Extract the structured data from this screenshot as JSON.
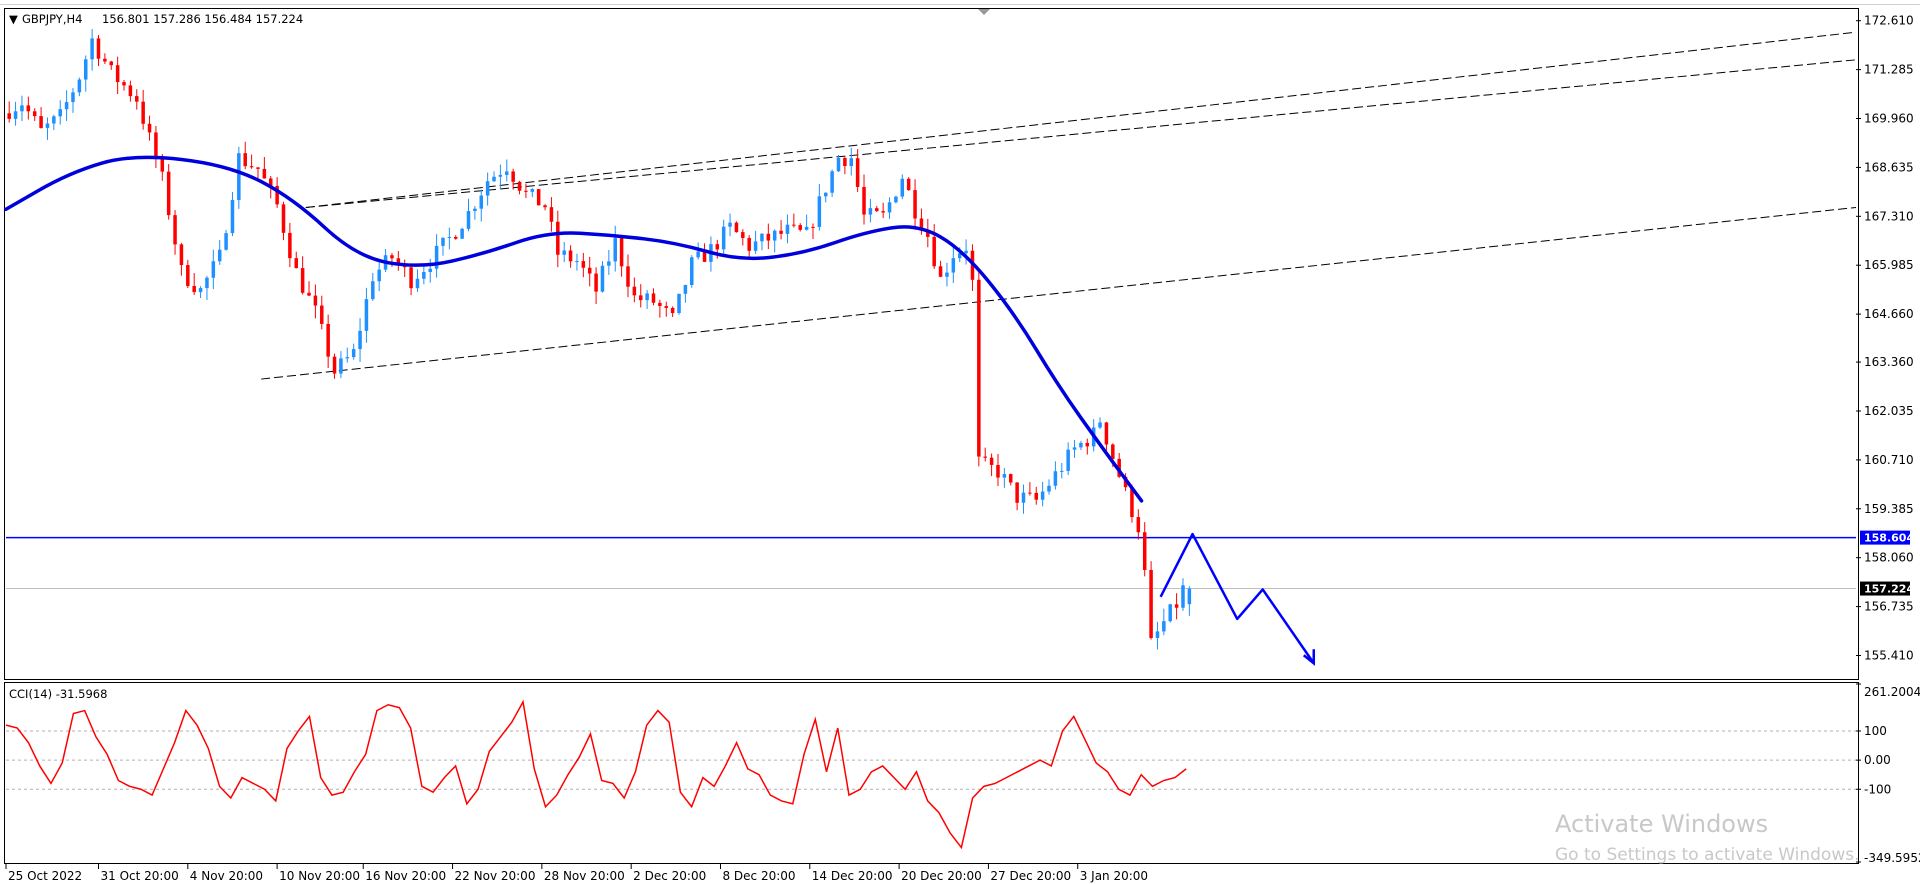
{
  "header": {
    "symbol_timeframe": "GBPJPY,H4",
    "ohlc": "156.801 157.286 156.484 157.224"
  },
  "indicator": {
    "label": "CCI(14) -31.5968",
    "levels": [
      100,
      0,
      -100
    ],
    "axis_labels": [
      "261.2004",
      "100",
      "0.00",
      "-100",
      "-349.5952"
    ],
    "color": "#ff0000"
  },
  "price_axis": {
    "labels": [
      "172.610",
      "171.285",
      "169.960",
      "168.635",
      "167.310",
      "165.985",
      "164.660",
      "163.360",
      "162.035",
      "160.710",
      "159.385",
      "158.060",
      "156.735",
      "155.410"
    ],
    "tags": [
      {
        "text": "158.604",
        "bg": "#0000ff"
      },
      {
        "text": "157.224",
        "bg": "#000000"
      }
    ]
  },
  "time_axis": {
    "labels": [
      "25 Oct 2022",
      "31 Oct 20:00",
      "4 Nov 20:00",
      "10 Nov 20:00",
      "16 Nov 20:00",
      "22 Nov 20:00",
      "28 Nov 20:00",
      "2 Dec 20:00",
      "8 Dec 20:00",
      "14 Dec 20:00",
      "20 Dec 20:00",
      "27 Dec 20:00",
      "3 Jan 20:00"
    ]
  },
  "watermark": {
    "title": "Activate Windows",
    "subtitle": "Go to Settings to activate Windows."
  },
  "colors": {
    "bull": "#1e90ff",
    "bear": "#ff0000",
    "ma": "#0000dd",
    "horizontal_line": "#0000ff",
    "current_price_line": "#c0c0c0",
    "projection": "#0000ff",
    "channel": "#000000"
  },
  "chart_data": {
    "type": "candlestick",
    "symbol": "GBPJPY",
    "timeframe": "H4",
    "ylim": [
      154.8,
      172.9
    ],
    "horizontal_line": 158.604,
    "current_price": 157.224,
    "x_range": [
      0,
      290
    ],
    "channel_upper": [
      [
        47,
        167.55
      ],
      [
        290,
        172.3
      ]
    ],
    "channel_lower": [
      [
        40,
        162.9
      ],
      [
        290,
        167.55
      ]
    ],
    "channel_mid": [
      [
        47,
        167.55
      ],
      [
        290,
        172.3
      ]
    ],
    "moving_average": [
      [
        0,
        167.5
      ],
      [
        10,
        168.5
      ],
      [
        20,
        169.0
      ],
      [
        35,
        168.7
      ],
      [
        45,
        167.8
      ],
      [
        55,
        166.2
      ],
      [
        65,
        165.9
      ],
      [
        75,
        166.3
      ],
      [
        85,
        166.9
      ],
      [
        95,
        166.8
      ],
      [
        105,
        166.6
      ],
      [
        115,
        166.1
      ],
      [
        125,
        166.3
      ],
      [
        135,
        166.9
      ],
      [
        143,
        167.1
      ],
      [
        150,
        166.4
      ],
      [
        158,
        164.7
      ],
      [
        165,
        162.7
      ],
      [
        172,
        161.0
      ],
      [
        178,
        159.6
      ]
    ],
    "projection_path": [
      [
        181,
        157.0
      ],
      [
        186,
        158.7
      ],
      [
        193,
        156.4
      ],
      [
        197,
        157.2
      ],
      [
        205,
        155.2
      ]
    ],
    "candles": [],
    "cci": {
      "name": "CCI(14)",
      "last": -31.5968,
      "ylim": [
        -349.5952,
        261.2004
      ],
      "values": [
        120,
        110,
        60,
        -20,
        -80,
        -10,
        160,
        170,
        80,
        20,
        -70,
        -90,
        -100,
        -120,
        -30,
        60,
        170,
        120,
        40,
        -90,
        -130,
        -60,
        -80,
        -100,
        -140,
        40,
        100,
        150,
        -60,
        -120,
        -110,
        -40,
        20,
        170,
        190,
        180,
        110,
        -90,
        -110,
        -60,
        -20,
        -150,
        -100,
        30,
        80,
        130,
        200,
        -30,
        -160,
        -120,
        -50,
        10,
        90,
        -70,
        -80,
        -130,
        -40,
        120,
        170,
        130,
        -110,
        -160,
        -60,
        -90,
        -20,
        60,
        -30,
        -50,
        -120,
        -140,
        -150,
        20,
        140,
        -40,
        110,
        -120,
        -100,
        -40,
        -20,
        -60,
        -100,
        -40,
        -140,
        -180,
        -250,
        -300,
        -130,
        -90,
        -80,
        -60,
        -40,
        -20,
        0,
        -20,
        100,
        150,
        70,
        -10,
        -40,
        -100,
        -120,
        -50,
        -90,
        -70,
        -60,
        -30
      ]
    }
  }
}
